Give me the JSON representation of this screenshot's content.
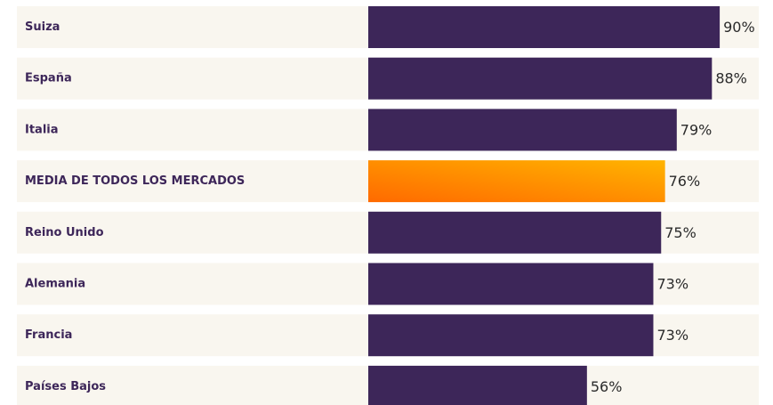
{
  "chart_data": {
    "type": "hbar",
    "categories": [
      "Suiza",
      "España",
      "Italia",
      "MEDIA DE TODOS LOS MERCADOS",
      "Reino Unido",
      "Alemania",
      "Francia",
      "Países Bajos"
    ],
    "values": [
      90,
      88,
      79,
      76,
      75,
      73,
      73,
      56
    ],
    "value_labels": [
      "90%",
      "88%",
      "79%",
      "76%",
      "75%",
      "73%",
      "73%",
      "56%"
    ],
    "colors": [
      "#3d2659",
      "#3d2659",
      "#3d2659",
      [
        "#ff6a00",
        "#ffb400"
      ],
      "#3d2659",
      "#3d2659",
      "#3d2659",
      "#3d2659"
    ],
    "xlim": [
      0,
      100
    ]
  }
}
